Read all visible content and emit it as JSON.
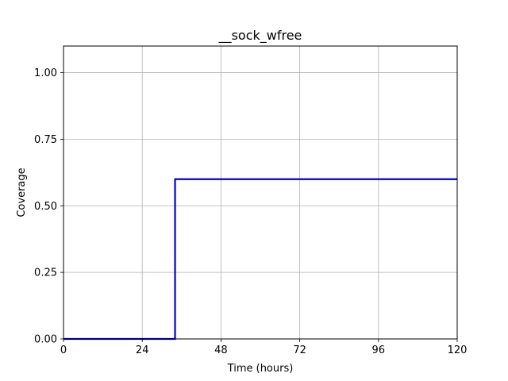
{
  "chart_data": {
    "type": "line",
    "title": "__sock_wfree",
    "xlabel": "Time (hours)",
    "ylabel": "Coverage",
    "xlim": [
      0,
      120
    ],
    "ylim": [
      0,
      1.1
    ],
    "x_ticks": [
      0,
      24,
      48,
      72,
      96,
      120
    ],
    "x_tick_labels": [
      "0",
      "24",
      "48",
      "72",
      "96",
      "120"
    ],
    "y_ticks": [
      0,
      0.25,
      0.5,
      0.75,
      1.0
    ],
    "y_tick_labels": [
      "0.00",
      "0.25",
      "0.50",
      "0.75",
      "1.00"
    ],
    "grid": true,
    "series": [
      {
        "color": "#0000cc",
        "step": "post",
        "x": [
          0,
          34,
          34,
          120
        ],
        "y": [
          0,
          0,
          0.6,
          0.6
        ]
      }
    ]
  }
}
